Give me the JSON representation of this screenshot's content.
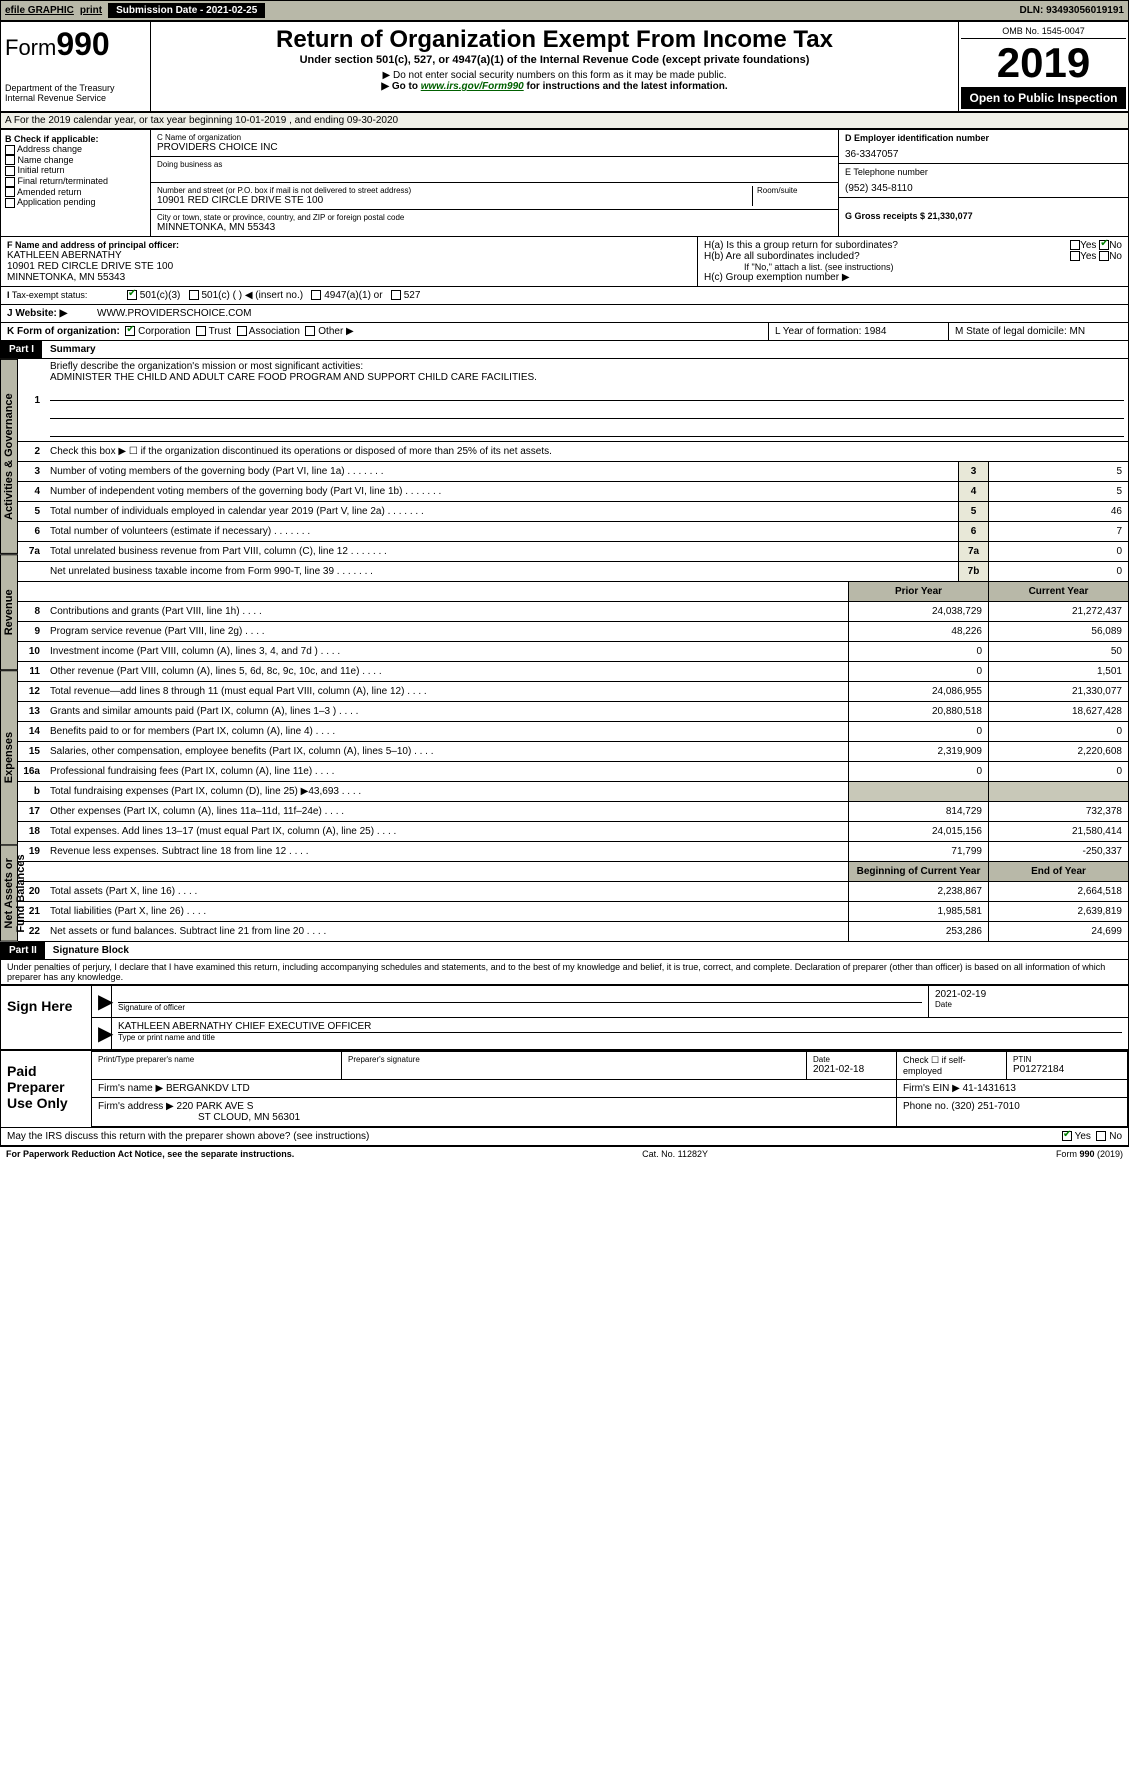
{
  "topbar": {
    "efile": "efile GRAPHIC",
    "print": "print",
    "subdate_label": "Submission Date - 2021-02-25",
    "dln": "DLN: 93493056019191"
  },
  "header": {
    "form_prefix": "Form",
    "form_num": "990",
    "dept1": "Department of the Treasury",
    "dept2": "Internal Revenue Service",
    "title": "Return of Organization Exempt From Income Tax",
    "sub1": "Under section 501(c), 527, or 4947(a)(1) of the Internal Revenue Code (except private foundations)",
    "sub2": "▶ Do not enter social security numbers on this form as it may be made public.",
    "sub3_pre": "▶ Go to ",
    "sub3_link": "www.irs.gov/Form990",
    "sub3_post": " for instructions and the latest information.",
    "omb": "OMB No. 1545-0047",
    "year": "2019",
    "open": "Open to Public Inspection"
  },
  "section_a": "For the 2019 calendar year, or tax year beginning 10-01-2019   , and ending 09-30-2020",
  "col_b": {
    "label": "B Check if applicable:",
    "items": [
      "Address change",
      "Name change",
      "Initial return",
      "Final return/terminated",
      "Amended return",
      "Application pending"
    ]
  },
  "col_c": {
    "name_label": "C Name of organization",
    "name": "PROVIDERS CHOICE INC",
    "dba_label": "Doing business as",
    "addr_label": "Number and street (or P.O. box if mail is not delivered to street address)",
    "room_label": "Room/suite",
    "addr": "10901 RED CIRCLE DRIVE STE 100",
    "city_label": "City or town, state or province, country, and ZIP or foreign postal code",
    "city": "MINNETONKA, MN  55343"
  },
  "col_d": {
    "ein_label": "D Employer identification number",
    "ein": "36-3347057",
    "phone_label": "E Telephone number",
    "phone": "(952) 345-8110",
    "gross_label": "G Gross receipts $ 21,330,077"
  },
  "officer": {
    "label": "F  Name and address of principal officer:",
    "name": "KATHLEEN ABERNATHY",
    "addr1": "10901 RED CIRCLE DRIVE STE 100",
    "addr2": "MINNETONKA, MN  55343"
  },
  "h": {
    "ha": "H(a)  Is this a group return for subordinates?",
    "hb": "H(b)  Are all subordinates included?",
    "hb_note": "If \"No,\" attach a list. (see instructions)",
    "hc": "H(c)  Group exemption number ▶",
    "yes": "Yes",
    "no": "No"
  },
  "tax_status": {
    "label": "Tax-exempt status:",
    "opt1": "501(c)(3)",
    "opt2": "501(c) (  ) ◀ (insert no.)",
    "opt3": "4947(a)(1) or",
    "opt4": "527"
  },
  "website": {
    "label": "Website: ▶",
    "value": "WWW.PROVIDERSCHOICE.COM"
  },
  "row_k": {
    "label": "K Form of organization:",
    "corp": "Corporation",
    "trust": "Trust",
    "assoc": "Association",
    "other": "Other ▶",
    "l_label": "L Year of formation: 1984",
    "m_label": "M State of legal domicile: MN"
  },
  "part1": {
    "header": "Part I",
    "title": "Summary",
    "q1": "Briefly describe the organization's mission or most significant activities:",
    "q1_ans": "ADMINISTER THE CHILD AND ADULT CARE FOOD PROGRAM AND SUPPORT CHILD CARE FACILITIES.",
    "q2": "Check this box ▶ ☐  if the organization discontinued its operations or disposed of more than 25% of its net assets.",
    "rows_single": [
      {
        "n": "3",
        "desc": "Number of voting members of the governing body (Part VI, line 1a)",
        "box": "3",
        "val": "5"
      },
      {
        "n": "4",
        "desc": "Number of independent voting members of the governing body (Part VI, line 1b)",
        "box": "4",
        "val": "5"
      },
      {
        "n": "5",
        "desc": "Total number of individuals employed in calendar year 2019 (Part V, line 2a)",
        "box": "5",
        "val": "46"
      },
      {
        "n": "6",
        "desc": "Total number of volunteers (estimate if necessary)",
        "box": "6",
        "val": "7"
      },
      {
        "n": "7a",
        "desc": "Total unrelated business revenue from Part VIII, column (C), line 12",
        "box": "7a",
        "val": "0"
      },
      {
        "n": "",
        "desc": "Net unrelated business taxable income from Form 990-T, line 39",
        "box": "7b",
        "val": "0"
      }
    ],
    "col_headers": {
      "prior": "Prior Year",
      "current": "Current Year"
    },
    "tabs": {
      "gov": "Activities & Governance",
      "rev": "Revenue",
      "exp": "Expenses",
      "net": "Net Assets or Fund Balances"
    },
    "revenue": [
      {
        "n": "8",
        "desc": "Contributions and grants (Part VIII, line 1h)",
        "prior": "24,038,729",
        "cur": "21,272,437"
      },
      {
        "n": "9",
        "desc": "Program service revenue (Part VIII, line 2g)",
        "prior": "48,226",
        "cur": "56,089"
      },
      {
        "n": "10",
        "desc": "Investment income (Part VIII, column (A), lines 3, 4, and 7d )",
        "prior": "0",
        "cur": "50"
      },
      {
        "n": "11",
        "desc": "Other revenue (Part VIII, column (A), lines 5, 6d, 8c, 9c, 10c, and 11e)",
        "prior": "0",
        "cur": "1,501"
      },
      {
        "n": "12",
        "desc": "Total revenue—add lines 8 through 11 (must equal Part VIII, column (A), line 12)",
        "prior": "24,086,955",
        "cur": "21,330,077"
      }
    ],
    "expenses": [
      {
        "n": "13",
        "desc": "Grants and similar amounts paid (Part IX, column (A), lines 1–3 )",
        "prior": "20,880,518",
        "cur": "18,627,428"
      },
      {
        "n": "14",
        "desc": "Benefits paid to or for members (Part IX, column (A), line 4)",
        "prior": "0",
        "cur": "0"
      },
      {
        "n": "15",
        "desc": "Salaries, other compensation, employee benefits (Part IX, column (A), lines 5–10)",
        "prior": "2,319,909",
        "cur": "2,220,608"
      },
      {
        "n": "16a",
        "desc": "Professional fundraising fees (Part IX, column (A), line 11e)",
        "prior": "0",
        "cur": "0"
      },
      {
        "n": "b",
        "desc": "Total fundraising expenses (Part IX, column (D), line 25) ▶43,693",
        "prior": "",
        "cur": "",
        "shaded": true
      },
      {
        "n": "17",
        "desc": "Other expenses (Part IX, column (A), lines 11a–11d, 11f–24e)",
        "prior": "814,729",
        "cur": "732,378"
      },
      {
        "n": "18",
        "desc": "Total expenses. Add lines 13–17 (must equal Part IX, column (A), line 25)",
        "prior": "24,015,156",
        "cur": "21,580,414"
      },
      {
        "n": "19",
        "desc": "Revenue less expenses. Subtract line 18 from line 12",
        "prior": "71,799",
        "cur": "-250,337"
      }
    ],
    "net_headers": {
      "begin": "Beginning of Current Year",
      "end": "End of Year"
    },
    "net": [
      {
        "n": "20",
        "desc": "Total assets (Part X, line 16)",
        "prior": "2,238,867",
        "cur": "2,664,518"
      },
      {
        "n": "21",
        "desc": "Total liabilities (Part X, line 26)",
        "prior": "1,985,581",
        "cur": "2,639,819"
      },
      {
        "n": "22",
        "desc": "Net assets or fund balances. Subtract line 21 from line 20",
        "prior": "253,286",
        "cur": "24,699"
      }
    ]
  },
  "part2": {
    "header": "Part II",
    "title": "Signature Block",
    "decl": "Under penalties of perjury, I declare that I have examined this return, including accompanying schedules and statements, and to the best of my knowledge and belief, it is true, correct, and complete. Declaration of preparer (other than officer) is based on all information of which preparer has any knowledge."
  },
  "sign": {
    "left": "Sign Here",
    "sig_label": "Signature of officer",
    "date": "2021-02-19",
    "date_label": "Date",
    "name": "KATHLEEN ABERNATHY CHIEF EXECUTIVE OFFICER",
    "name_label": "Type or print name and title"
  },
  "paid": {
    "left": "Paid Preparer Use Only",
    "c1": "Print/Type preparer's name",
    "c2": "Preparer's signature",
    "c3": "Date",
    "c3v": "2021-02-18",
    "c4": "Check ☐ if self-employed",
    "c5": "PTIN",
    "c5v": "P01272184",
    "firm_label": "Firm's name      ▶",
    "firm": "BERGANKDV LTD",
    "ein_label": "Firm's EIN ▶",
    "ein": "41-1431613",
    "addr_label": "Firm's address ▶",
    "addr1": "220 PARK AVE S",
    "addr2": "ST CLOUD, MN  56301",
    "phone_label": "Phone no.",
    "phone": "(320) 251-7010"
  },
  "discuss": "May the IRS discuss this return with the preparer shown above? (see instructions)",
  "footer": {
    "left": "For Paperwork Reduction Act Notice, see the separate instructions.",
    "mid": "Cat. No. 11282Y",
    "right": "Form 990 (2019)"
  }
}
